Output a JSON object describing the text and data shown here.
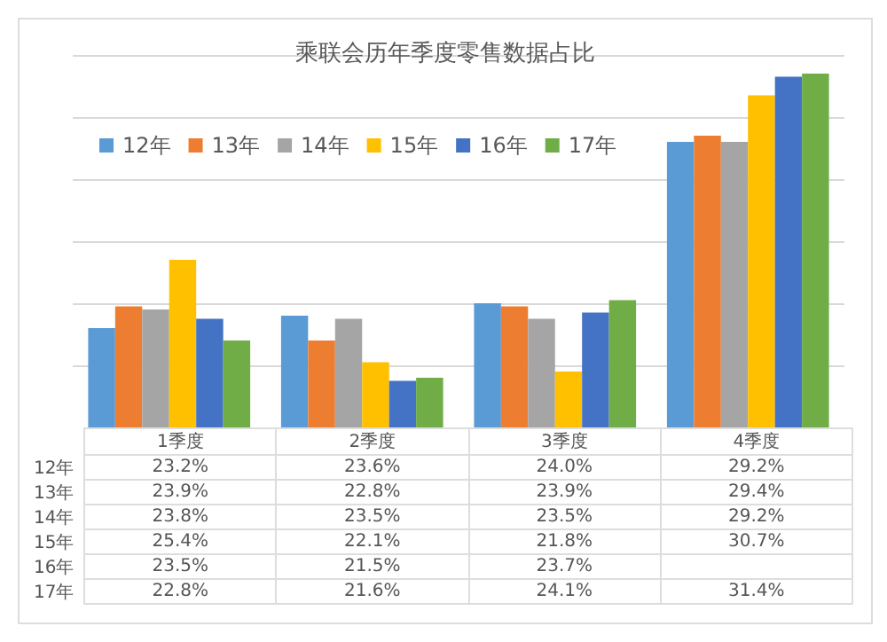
{
  "chart_data": {
    "type": "bar",
    "title": "乘联会历年季度零售数据占比",
    "categories": [
      "1季度",
      "2季度",
      "3季度",
      "4季度"
    ],
    "series": [
      {
        "name": "12年",
        "color": "#5b9bd5",
        "values": [
          23.2,
          23.6,
          24.0,
          29.2
        ],
        "value_labels": [
          "23.2%",
          "23.6%",
          "24.0%",
          "29.2%"
        ]
      },
      {
        "name": "13年",
        "color": "#ed7d31",
        "values": [
          23.9,
          22.8,
          23.9,
          29.4
        ],
        "value_labels": [
          "23.9%",
          "22.8%",
          "23.9%",
          "29.4%"
        ]
      },
      {
        "name": "14年",
        "color": "#a5a5a5",
        "values": [
          23.8,
          23.5,
          23.5,
          29.2
        ],
        "value_labels": [
          "23.8%",
          "23.5%",
          "23.5%",
          "29.2%"
        ]
      },
      {
        "name": "15年",
        "color": "#ffc000",
        "values": [
          25.4,
          22.1,
          21.8,
          30.7
        ],
        "value_labels": [
          "25.4%",
          "22.1%",
          "21.8%",
          "30.7%"
        ]
      },
      {
        "name": "16年",
        "color": "#4472c4",
        "values": [
          23.5,
          21.5,
          23.7,
          31.3
        ],
        "value_labels": [
          "23.5%",
          "21.5%",
          "23.7%",
          null
        ]
      },
      {
        "name": "17年",
        "color": "#70ad47",
        "values": [
          22.8,
          21.6,
          24.1,
          31.4
        ],
        "value_labels": [
          "22.8%",
          "21.6%",
          "24.1%",
          "31.4%"
        ]
      }
    ],
    "ylim": [
      20,
      32
    ],
    "grid": "y",
    "legend": "top left"
  }
}
